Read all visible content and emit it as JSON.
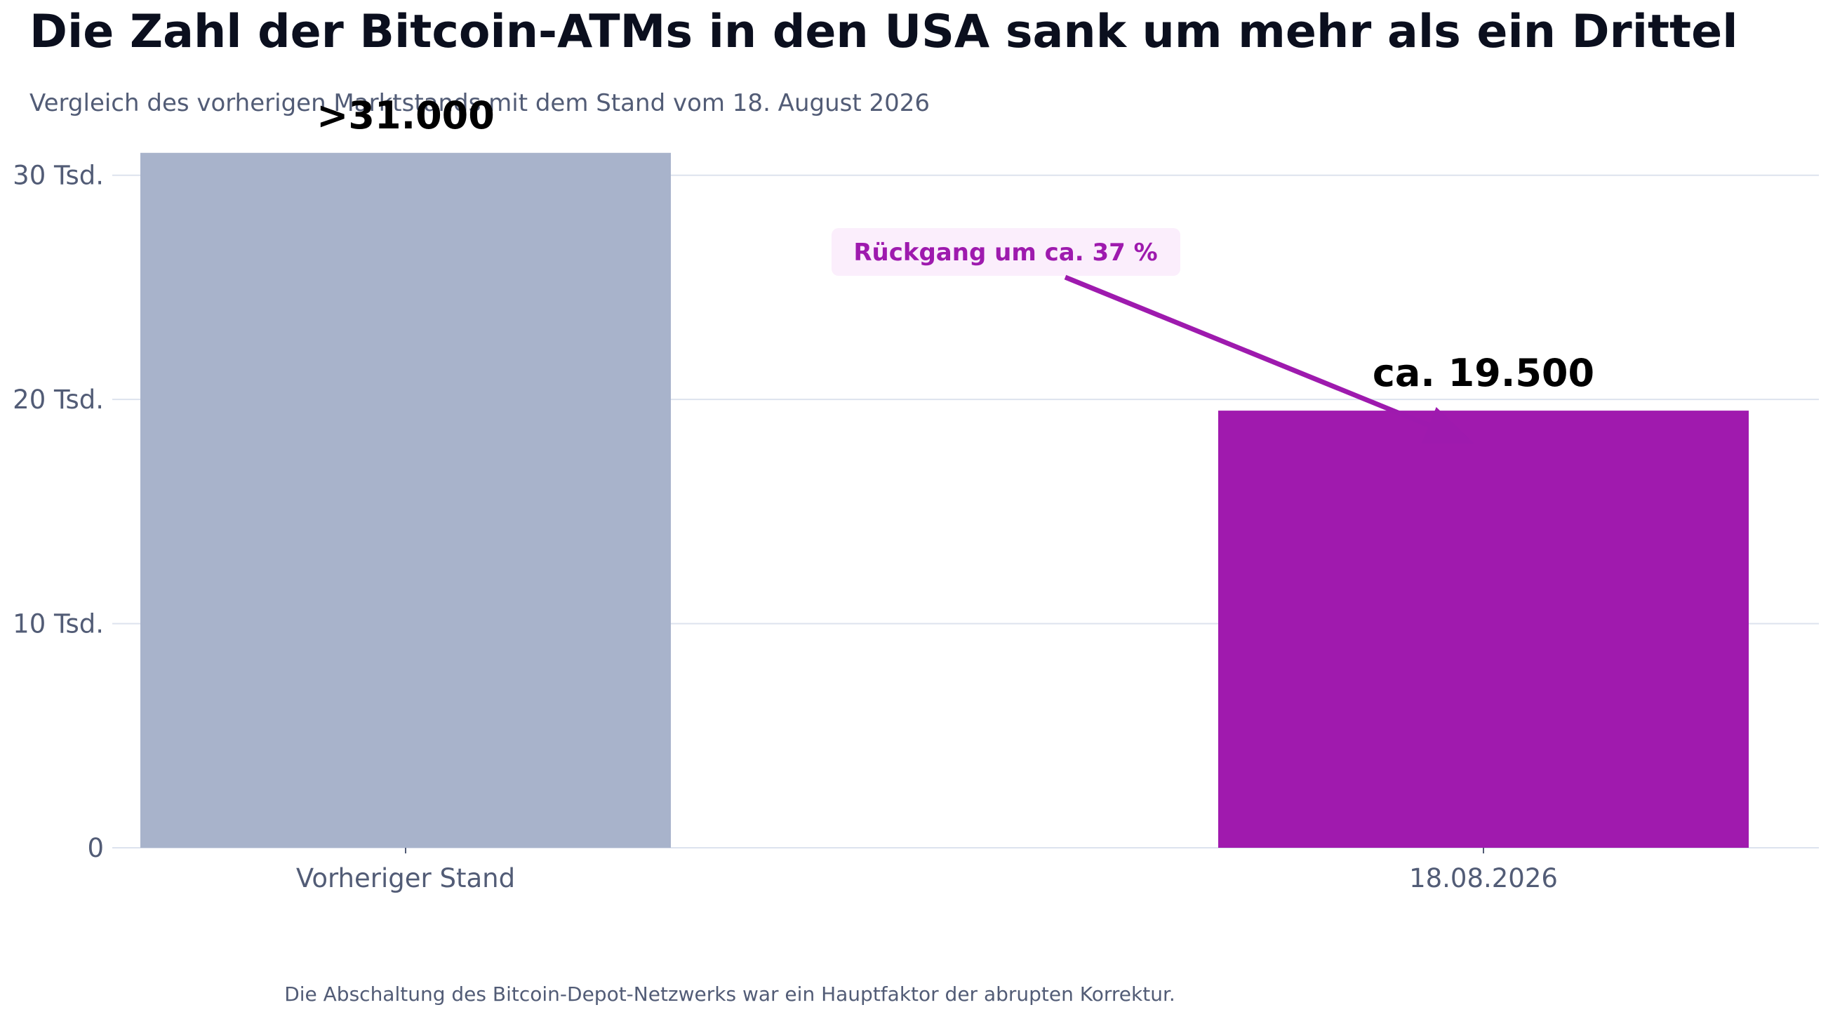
{
  "chart_data": {
    "type": "bar",
    "title": "Die Zahl der Bitcoin-ATMs in den USA sank um mehr als ein Drittel",
    "subtitle": "Vergleich des vorherigen Marktstands mit dem Stand vom 18. August 2026",
    "categories": [
      "Vorheriger Stand",
      "18.08.2026"
    ],
    "values": [
      31000,
      19500
    ],
    "value_labels": [
      ">31.000",
      "ca. 19.500"
    ],
    "bar_colors": [
      "#a8b3cb",
      "#a01aae"
    ],
    "ylim": [
      0,
      35000
    ],
    "yticks": [
      0,
      10000,
      20000,
      30000
    ],
    "ytick_labels": [
      "0",
      "10 Tsd.",
      "20 Tsd.",
      "30 Tsd."
    ],
    "grid": true,
    "annotation": {
      "text": "Rückgang um ca. 37 %",
      "color": "#9e1aae",
      "background": "#fbeefc"
    },
    "footnote": "Die Abschaltung des Bitcoin-Depot-Netzwerks war ein Hauptfaktor der abrupten Korrektur."
  }
}
